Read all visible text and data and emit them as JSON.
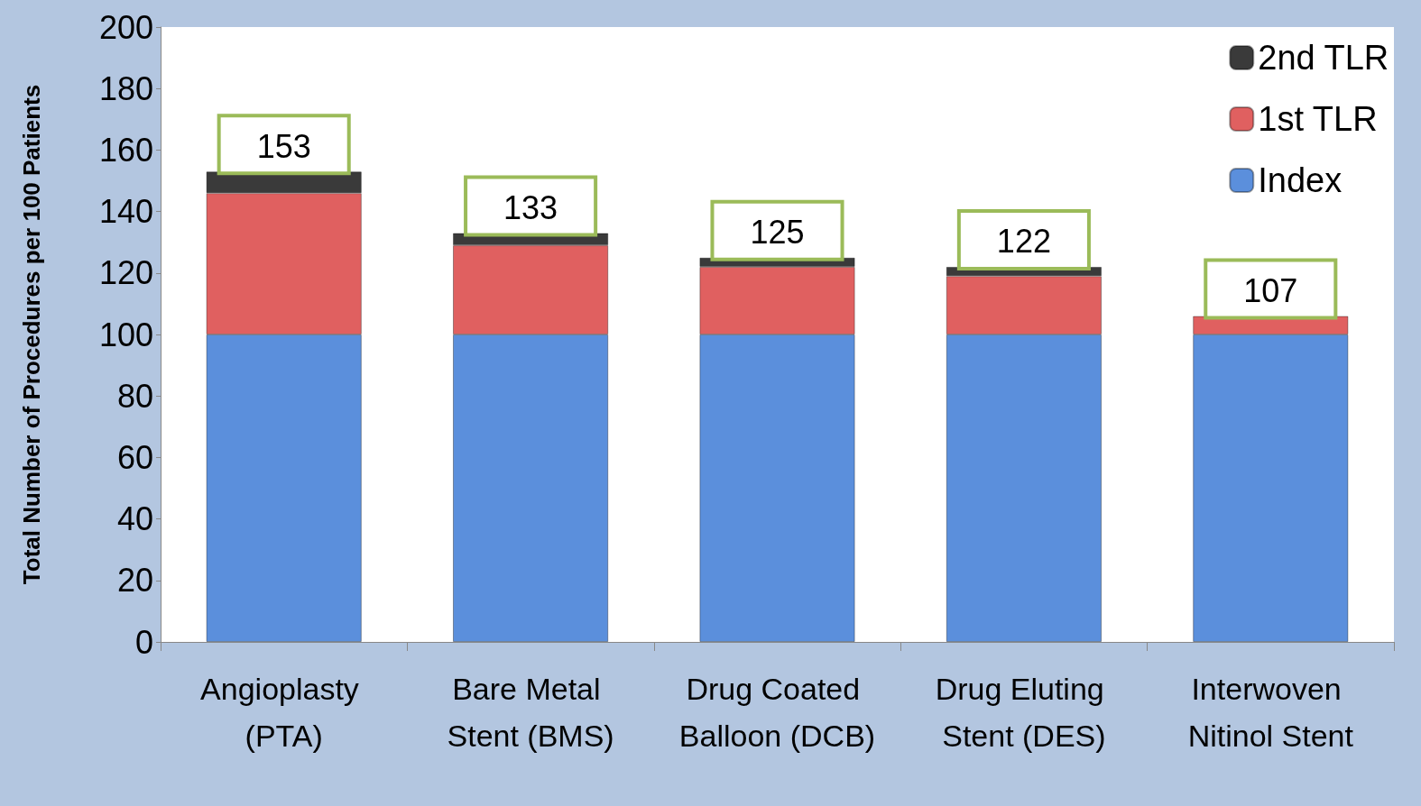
{
  "chart_data": {
    "type": "bar",
    "stacked": true,
    "ylabel": "Total Number of Procedures per 100 Patients",
    "categories": [
      "Angioplasty (PTA)",
      "Bare Metal Stent (BMS)",
      "Drug Coated Balloon (DCB)",
      "Drug Eluting Stent (DES)",
      "Interwoven Nitinol Stent"
    ],
    "series": [
      {
        "name": "Index",
        "color": "#5b8fdc",
        "values": [
          100,
          100,
          100,
          100,
          100
        ]
      },
      {
        "name": "1st TLR",
        "color": "#e06060",
        "values": [
          46,
          29,
          22,
          19,
          6
        ]
      },
      {
        "name": "2nd TLR",
        "color": "#3a3a3a",
        "values": [
          7,
          4,
          3,
          3,
          null
        ]
      }
    ],
    "totals": [
      "153",
      "133",
      "125",
      "122",
      "107"
    ],
    "ylim": [
      0,
      200
    ],
    "yticks": [
      0,
      20,
      40,
      60,
      80,
      100,
      120,
      140,
      160,
      180,
      200
    ],
    "grid": false,
    "legend": "top right"
  }
}
